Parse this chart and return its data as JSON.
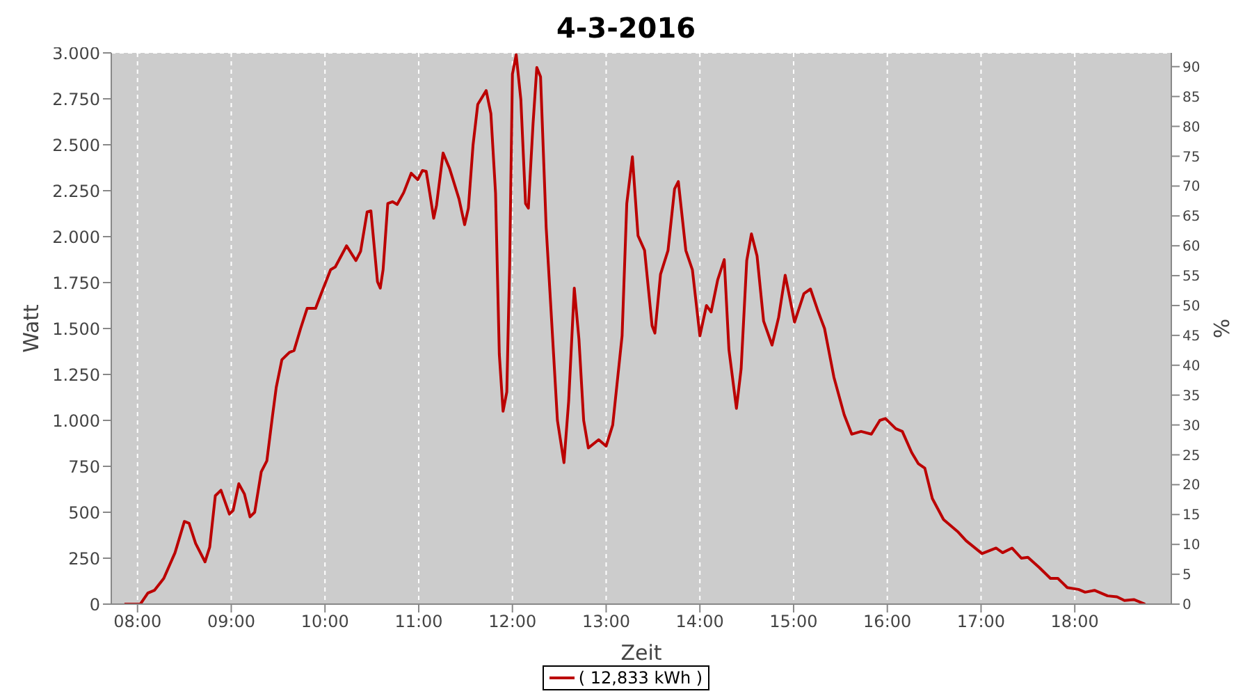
{
  "chart_data": {
    "type": "line",
    "title": "4-3-2016",
    "xlabel": "Zeit",
    "ylabel": "Watt",
    "y2label": "%",
    "xlim": [
      7.72,
      19.03
    ],
    "xticks": [
      {
        "value": 8,
        "label": "08:00"
      },
      {
        "value": 9,
        "label": "09:00"
      },
      {
        "value": 10,
        "label": "10:00"
      },
      {
        "value": 11,
        "label": "11:00"
      },
      {
        "value": 12,
        "label": "12:00"
      },
      {
        "value": 13,
        "label": "13:00"
      },
      {
        "value": 14,
        "label": "14:00"
      },
      {
        "value": 15,
        "label": "15:00"
      },
      {
        "value": 16,
        "label": "16:00"
      },
      {
        "value": 17,
        "label": "17:00"
      },
      {
        "value": 18,
        "label": "18:00"
      }
    ],
    "ylim": [
      0,
      3000
    ],
    "yticks": [
      {
        "value": 0,
        "label": "0"
      },
      {
        "value": 250,
        "label": "250"
      },
      {
        "value": 500,
        "label": "500"
      },
      {
        "value": 750,
        "label": "750"
      },
      {
        "value": 1000,
        "label": "1.000"
      },
      {
        "value": 1250,
        "label": "1.250"
      },
      {
        "value": 1500,
        "label": "1.500"
      },
      {
        "value": 1750,
        "label": "1.750"
      },
      {
        "value": 2000,
        "label": "2.000"
      },
      {
        "value": 2250,
        "label": "2.250"
      },
      {
        "value": 2500,
        "label": "2.500"
      },
      {
        "value": 2750,
        "label": "2.750"
      },
      {
        "value": 3000,
        "label": "3.000"
      }
    ],
    "y2lim": [
      0,
      92.3
    ],
    "y2ticks": [
      0,
      5,
      10,
      15,
      20,
      25,
      30,
      35,
      40,
      45,
      50,
      55,
      60,
      65,
      70,
      75,
      80,
      85,
      90
    ],
    "grid": true,
    "legend": "bottom",
    "marker": "none",
    "line_style": "solid",
    "series": [
      {
        "name": "( 12,833 kWh )",
        "color": "#bb0000",
        "x": [
          7.86,
          8.03,
          8.11,
          8.18,
          8.28,
          8.4,
          8.5,
          8.55,
          8.62,
          8.72,
          8.77,
          8.83,
          8.89,
          8.98,
          9.02,
          9.08,
          9.14,
          9.2,
          9.25,
          9.32,
          9.38,
          9.44,
          9.48,
          9.54,
          9.62,
          9.67,
          9.74,
          9.81,
          9.9,
          9.96,
          10.06,
          10.11,
          10.23,
          10.33,
          10.38,
          10.45,
          10.49,
          10.56,
          10.59,
          10.62,
          10.67,
          10.72,
          10.77,
          10.84,
          10.92,
          10.99,
          11.04,
          11.08,
          11.12,
          11.16,
          11.19,
          11.26,
          11.33,
          11.43,
          11.49,
          11.53,
          11.58,
          11.63,
          11.72,
          11.77,
          11.82,
          11.86,
          11.9,
          11.94,
          11.97,
          12,
          12.04,
          12.09,
          12.14,
          12.17,
          12.22,
          12.26,
          12.3,
          12.36,
          12.41,
          12.48,
          12.55,
          12.6,
          12.66,
          12.71,
          12.76,
          12.81,
          12.92,
          13,
          13.07,
          13.17,
          13.22,
          13.28,
          13.34,
          13.41,
          13.49,
          13.52,
          13.58,
          13.66,
          13.73,
          13.77,
          13.85,
          13.92,
          14,
          14.07,
          14.12,
          14.19,
          14.26,
          14.31,
          14.39,
          14.44,
          14.5,
          14.55,
          14.61,
          14.68,
          14.77,
          14.84,
          14.91,
          14.95,
          15.01,
          15.11,
          15.18,
          15.26,
          15.33,
          15.43,
          15.54,
          15.62,
          15.72,
          15.83,
          15.92,
          15.98,
          16.09,
          16.16,
          16.26,
          16.33,
          16.4,
          16.48,
          16.6,
          16.75,
          16.84,
          17.01,
          17.16,
          17.23,
          17.33,
          17.43,
          17.5,
          17.62,
          17.74,
          17.82,
          17.92,
          18.04,
          18.11,
          18.21,
          18.35,
          18.45,
          18.53,
          18.63,
          18.75
        ],
        "values": [
          0,
          0,
          60,
          75,
          140,
          280,
          450,
          440,
          330,
          230,
          310,
          590,
          620,
          490,
          510,
          655,
          600,
          475,
          500,
          720,
          780,
          1025,
          1180,
          1330,
          1370,
          1380,
          1500,
          1610,
          1610,
          1690,
          1820,
          1835,
          1950,
          1870,
          1920,
          2135,
          2140,
          1755,
          1720,
          1820,
          2180,
          2190,
          2175,
          2240,
          2345,
          2310,
          2360,
          2355,
          2230,
          2100,
          2170,
          2455,
          2370,
          2205,
          2065,
          2155,
          2500,
          2720,
          2795,
          2670,
          2235,
          1360,
          1050,
          1155,
          1845,
          2885,
          2990,
          2745,
          2180,
          2155,
          2615,
          2920,
          2870,
          2050,
          1615,
          1000,
          770,
          1105,
          1720,
          1440,
          1000,
          850,
          895,
          860,
          975,
          1460,
          2180,
          2435,
          2005,
          1925,
          1515,
          1475,
          1795,
          1925,
          2260,
          2300,
          1925,
          1820,
          1460,
          1625,
          1590,
          1765,
          1875,
          1385,
          1065,
          1280,
          1870,
          2015,
          1895,
          1540,
          1410,
          1560,
          1790,
          1690,
          1535,
          1690,
          1715,
          1595,
          1500,
          1235,
          1030,
          925,
          940,
          925,
          1000,
          1010,
          955,
          940,
          825,
          765,
          740,
          575,
          460,
          395,
          345,
          275,
          305,
          280,
          305,
          250,
          255,
          200,
          140,
          140,
          90,
          80,
          65,
          75,
          45,
          40,
          20,
          25,
          0
        ]
      }
    ]
  }
}
